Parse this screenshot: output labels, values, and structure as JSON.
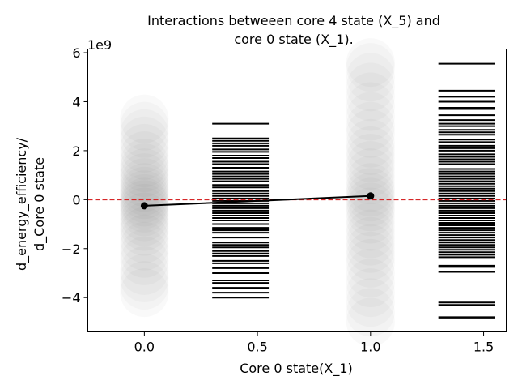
{
  "chart_data": {
    "type": "scatter",
    "title_lines": [
      "Interactions betweeen core 4 state (X_5)  and",
      "core 0 state (X_1)."
    ],
    "xlabel": "Core 0 state(X_1)",
    "ylabel_lines": [
      "d_energy_efficiency/",
      "d_Core 0 state"
    ],
    "y_offset_text": "1e9",
    "xlim": [
      -0.25,
      1.6
    ],
    "ylim": [
      -5.4,
      6.15
    ],
    "x_ticks": [
      0.0,
      0.5,
      1.0,
      1.5
    ],
    "x_tick_labels": [
      "0.0",
      "0.5",
      "1.0",
      "1.5"
    ],
    "y_ticks": [
      -4,
      -2,
      0,
      2,
      4,
      6
    ],
    "y_tick_labels": [
      "−4",
      "−2",
      "0",
      "2",
      "4",
      "6"
    ],
    "reference_line": {
      "y": 0,
      "color": "#d62728",
      "style": "dashed"
    },
    "mean_line": {
      "x": [
        0,
        1
      ],
      "y": [
        -0.25,
        0.15
      ],
      "color": "#000000"
    },
    "scatter_points": [
      {
        "x": 0,
        "y": [
          -3.8,
          -3.5,
          -3.2,
          -2.9,
          -2.5,
          -2.2,
          -1.9,
          -1.6,
          -1.3,
          -1.1,
          -0.9,
          -0.7,
          -0.5,
          -0.35,
          -0.2,
          -0.1,
          0.05,
          0.2,
          0.35,
          0.5,
          0.7,
          0.9,
          1.1,
          1.3,
          1.5,
          1.8,
          2.1,
          2.4,
          2.7,
          3.0,
          3.3
        ]
      },
      {
        "x": 1,
        "y": [
          -5.0,
          -4.6,
          -4.2,
          -3.8,
          -3.4,
          -3.0,
          -2.6,
          -2.3,
          -2.0,
          -1.7,
          -1.4,
          -1.1,
          -0.8,
          -0.5,
          -0.3,
          -0.1,
          0.1,
          0.3,
          0.5,
          0.8,
          1.1,
          1.4,
          1.7,
          2.0,
          2.3,
          2.7,
          3.0,
          3.4,
          3.8,
          4.2,
          4.6,
          5.0,
          5.4,
          5.6
        ]
      }
    ],
    "rug_x_ranges": [
      [
        0.3,
        0.55
      ],
      [
        1.3,
        1.55
      ]
    ],
    "rug_values": [
      [
        -4.0,
        -3.8,
        -3.6,
        -3.4,
        -3.3,
        -3.0,
        -2.8,
        -2.6,
        -2.5,
        -2.3,
        -2.2,
        -2.1,
        -1.95,
        -1.85,
        -1.75,
        -1.55,
        -1.35,
        -1.25,
        -1.2,
        -1.15,
        -1.0,
        -0.85,
        -0.75,
        -0.65,
        -0.55,
        -0.45,
        -0.35,
        -0.25,
        -0.15,
        -0.05,
        0.05,
        0.15,
        0.25,
        0.35,
        0.5,
        0.6,
        0.75,
        0.85,
        0.95,
        1.05,
        1.15,
        1.3,
        1.45,
        1.55,
        1.7,
        1.8,
        1.95,
        2.05,
        2.2,
        2.3,
        2.4,
        2.5,
        3.1
      ],
      [
        -4.85,
        -4.8,
        -4.3,
        -4.2,
        -2.95,
        -2.75,
        -2.7,
        -2.35,
        -2.25,
        -2.15,
        -2.05,
        -1.95,
        -1.85,
        -1.75,
        -1.65,
        -1.55,
        -1.45,
        -1.35,
        -1.25,
        -1.15,
        -1.05,
        -0.95,
        -0.85,
        -0.75,
        -0.65,
        -0.55,
        -0.45,
        -0.35,
        -0.25,
        -0.15,
        -0.05,
        0.05,
        0.15,
        0.25,
        0.35,
        0.45,
        0.55,
        0.65,
        0.75,
        0.85,
        0.95,
        1.05,
        1.15,
        1.25,
        1.45,
        1.55,
        1.65,
        1.75,
        1.85,
        2.0,
        2.1,
        2.2,
        2.35,
        2.45,
        2.65,
        2.75,
        2.85,
        3.0,
        3.1,
        3.25,
        3.45,
        3.7,
        3.75,
        4.0,
        4.2,
        4.45,
        5.55
      ]
    ]
  }
}
